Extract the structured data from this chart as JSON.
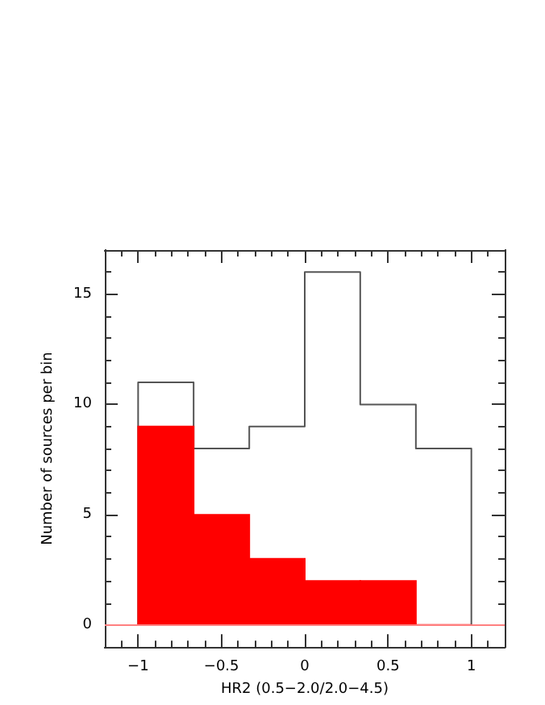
{
  "chart_data": {
    "type": "histogram",
    "xlabel": "HR2 (0.5−2.0/2.0−4.5)",
    "ylabel": "Number of sources per bin",
    "bins": [
      -1,
      -0.667,
      -0.333,
      0,
      0.333,
      0.667,
      1
    ],
    "series": [
      {
        "type": "step",
        "color": "#555555",
        "x": [
          -1,
          -1,
          -0.667,
          -0.333,
          0,
          0.333,
          0.667,
          1
        ],
        "values": [
          0,
          11,
          8,
          9,
          16,
          10,
          8,
          0
        ]
      },
      {
        "color": "#ff0000",
        "values": [
          9,
          5,
          3,
          2,
          2,
          0
        ]
      }
    ],
    "xlim": [
      -1.2,
      1.2
    ],
    "xticks": [
      -1,
      -0.5,
      0,
      0.5,
      1
    ],
    "ylim": [
      -1,
      17
    ],
    "yticks": [
      0,
      5,
      10,
      15
    ],
    "ref_lines": [
      {
        "axis": "y",
        "value": 0,
        "color": "#ff8080"
      }
    ],
    "grid": false
  }
}
